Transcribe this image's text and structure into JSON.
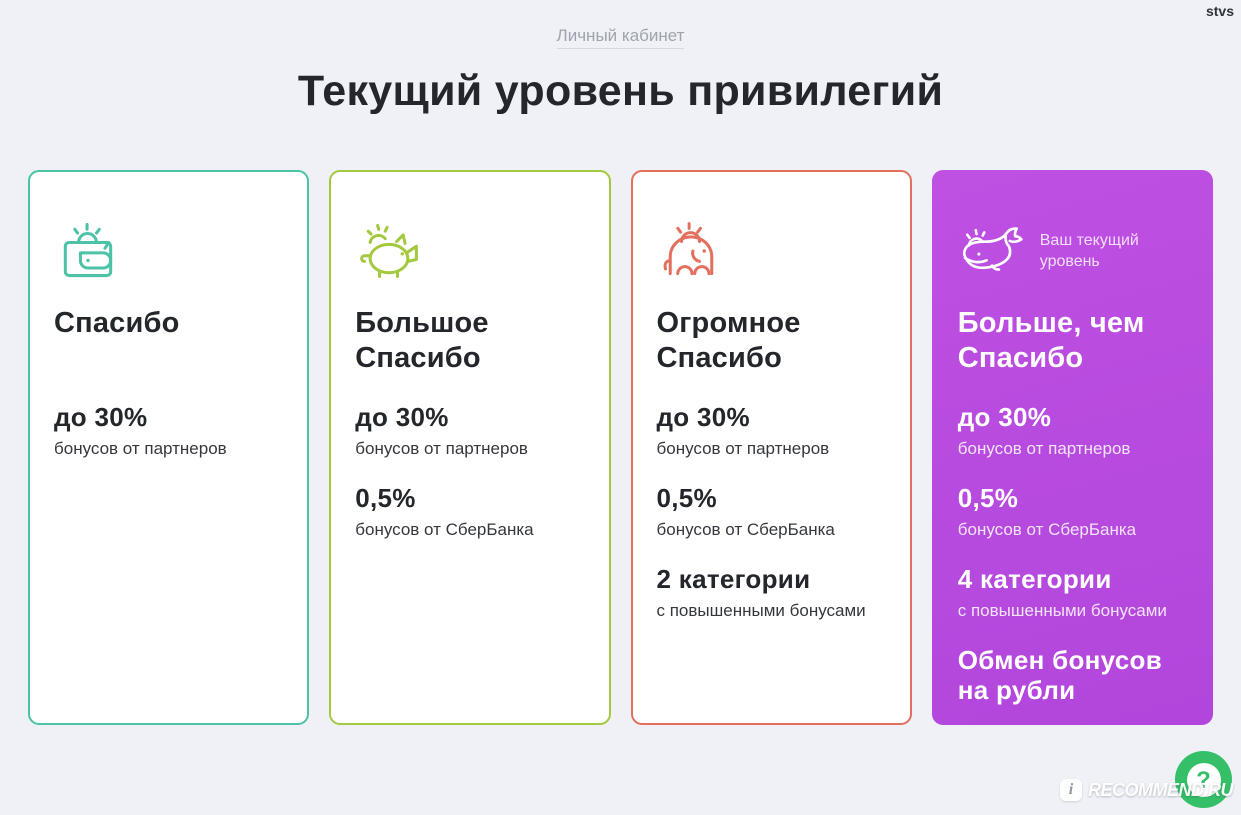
{
  "page": {
    "background": "#EFF1F6",
    "user_tag": "stvs"
  },
  "header": {
    "breadcrumb": "Личный кабинет",
    "title": "Текущий уровень привилегий"
  },
  "cards": [
    {
      "id": "spasibo",
      "title": "Спасибо",
      "icon": "wallet-icon",
      "accent": "#4CC2A6",
      "current": false,
      "benefits": [
        {
          "value": "до 30%",
          "caption": "бонусов от партнеров"
        }
      ]
    },
    {
      "id": "bolshoe-spasibo",
      "title": "Большое Спасибо",
      "icon": "piggy-bank-icon",
      "accent": "#A3C93E",
      "current": false,
      "benefits": [
        {
          "value": "до 30%",
          "caption": "бонусов от партнеров"
        },
        {
          "value": "0,5%",
          "caption": "бонусов от СберБанка"
        }
      ]
    },
    {
      "id": "ogromnoe-spasibo",
      "title": "Огромное Спасибо",
      "icon": "elephant-icon",
      "accent": "#E2705C",
      "current": false,
      "benefits": [
        {
          "value": "до 30%",
          "caption": "бонусов от партнеров"
        },
        {
          "value": "0,5%",
          "caption": "бонусов от СберБанка"
        },
        {
          "value": "2 категории",
          "caption": "с повышенными бонусами"
        }
      ]
    },
    {
      "id": "bolshe-chem-spasibo",
      "title": "Больше, чем Спасибо",
      "icon": "whale-icon",
      "accent": "#BE50E2",
      "accent_dark": "#B246DC",
      "current": true,
      "current_label": "Ваш текущий уровень",
      "benefits": [
        {
          "value": "до 30%",
          "caption": "бонусов от партнеров"
        },
        {
          "value": "0,5%",
          "caption": "бонусов от СберБанка"
        },
        {
          "value": "4 категории",
          "caption": "с повышенными бонусами"
        },
        {
          "value": "Обмен бонусов на рубли",
          "caption": ""
        }
      ]
    }
  ],
  "help_button": {
    "label": "?",
    "color": "#35BF68"
  },
  "watermark": {
    "text": "RECOMMEND.RU",
    "icon": "speech-bubble-i-icon",
    "bubble_letter": "i"
  }
}
